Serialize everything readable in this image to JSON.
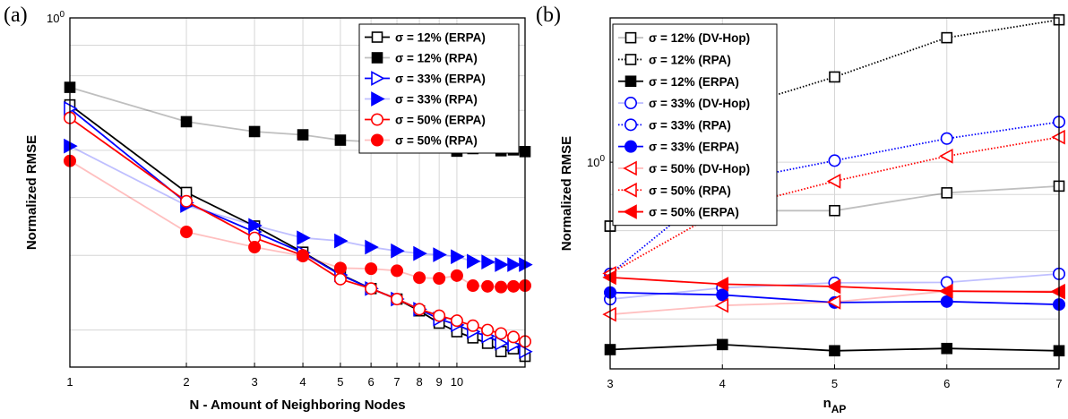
{
  "chart_data": [
    {
      "panel_label": "(a)",
      "type": "line",
      "xscale": "log",
      "yscale": "log",
      "xlabel": "N - Amount of Neighboring Nodes",
      "ylabel": "Normalized RMSE",
      "xlim": [
        1,
        15
      ],
      "ylim": [
        0.26,
        1.0
      ],
      "xticks": [
        1,
        2,
        3,
        4,
        5,
        6,
        7,
        8,
        9,
        10
      ],
      "xtick_labels": [
        "1",
        "2",
        "3",
        "4",
        "5",
        "6",
        "7",
        "8",
        "9",
        "10"
      ],
      "yticks": [
        1.0
      ],
      "ytick_labels": [
        "10⁰"
      ],
      "grid": true,
      "legend_position": "top-right",
      "series": [
        {
          "name": "σ = 12% (ERPA)",
          "color": "#000000",
          "marker": "square",
          "filled": false,
          "line_alpha": 1.0,
          "x": [
            1,
            2,
            3,
            4,
            5,
            6,
            7,
            8,
            9,
            10,
            11,
            12,
            13,
            14,
            15
          ],
          "y": [
            0.715,
            0.51,
            0.448,
            0.405,
            0.372,
            0.352,
            0.338,
            0.323,
            0.308,
            0.298,
            0.291,
            0.285,
            0.276,
            0.279,
            0.271
          ]
        },
        {
          "name": "σ = 12% (RPA)",
          "color": "#000000",
          "marker": "square",
          "filled": true,
          "line_alpha": 0.25,
          "x": [
            1,
            2,
            3,
            4,
            5,
            6,
            7,
            8,
            9,
            10,
            11,
            12,
            13,
            14,
            15
          ],
          "y": [
            0.765,
            0.67,
            0.645,
            0.637,
            0.624,
            0.62,
            0.617,
            0.615,
            0.607,
            0.598,
            0.604,
            0.61,
            0.599,
            0.601,
            0.597
          ]
        },
        {
          "name": "σ = 33% (ERPA)",
          "color": "#0000ff",
          "marker": "triangle-right",
          "filled": false,
          "line_alpha": 1.0,
          "x": [
            1,
            2,
            3,
            4,
            5,
            6,
            7,
            8,
            9,
            10,
            11,
            12,
            13,
            14,
            15
          ],
          "y": [
            0.705,
            0.49,
            0.438,
            0.404,
            0.371,
            0.352,
            0.338,
            0.325,
            0.313,
            0.306,
            0.298,
            0.293,
            0.285,
            0.283,
            0.276
          ]
        },
        {
          "name": "σ = 33% (RPA)",
          "color": "#0000ff",
          "marker": "triangle-right",
          "filled": true,
          "line_alpha": 0.25,
          "x": [
            1,
            2,
            3,
            4,
            5,
            6,
            7,
            8,
            9,
            10,
            11,
            12,
            13,
            14,
            15
          ],
          "y": [
            0.61,
            0.485,
            0.449,
            0.428,
            0.423,
            0.413,
            0.407,
            0.403,
            0.401,
            0.398,
            0.391,
            0.39,
            0.386,
            0.386,
            0.386
          ]
        },
        {
          "name": "σ = 50% (ERPA)",
          "color": "#ff0000",
          "marker": "circle",
          "filled": false,
          "line_alpha": 1.0,
          "x": [
            1,
            2,
            3,
            4,
            5,
            6,
            7,
            8,
            9,
            10,
            11,
            12,
            13,
            14,
            15
          ],
          "y": [
            0.68,
            0.493,
            0.428,
            0.4,
            0.365,
            0.352,
            0.338,
            0.325,
            0.317,
            0.311,
            0.305,
            0.3,
            0.296,
            0.292,
            0.287
          ]
        },
        {
          "name": "σ = 50% (RPA)",
          "color": "#ff0000",
          "marker": "circle",
          "filled": true,
          "line_alpha": 0.25,
          "x": [
            1,
            2,
            3,
            4,
            5,
            6,
            7,
            8,
            9,
            10,
            11,
            12,
            13,
            14,
            15
          ],
          "y": [
            0.576,
            0.438,
            0.413,
            0.399,
            0.381,
            0.38,
            0.377,
            0.367,
            0.366,
            0.37,
            0.356,
            0.355,
            0.354,
            0.355,
            0.356
          ]
        }
      ]
    },
    {
      "panel_label": "(b)",
      "type": "line",
      "xscale": "linear",
      "yscale": "log",
      "xlabel_main": "n",
      "xlabel_sub": "AP",
      "ylabel": "Normalized RMSE",
      "xlim": [
        3,
        7
      ],
      "ylim": [
        0.51,
        1.6
      ],
      "xticks": [
        3,
        4,
        5,
        6,
        7
      ],
      "xtick_labels": [
        "3",
        "4",
        "5",
        "6",
        "7"
      ],
      "yticks": [
        1.0
      ],
      "ytick_labels": [
        "10⁰"
      ],
      "grid": true,
      "legend_position": "top-left",
      "series": [
        {
          "name": "σ = 12% (DV-Hop)",
          "color": "#000000",
          "marker": "square",
          "filled": false,
          "line_alpha": 0.25,
          "dotted": false,
          "x": [
            3,
            4,
            5,
            6,
            7
          ],
          "y": [
            0.812,
            0.854,
            0.854,
            0.905,
            0.925
          ]
        },
        {
          "name": "σ = 12% (RPA)",
          "color": "#000000",
          "marker": "square",
          "filled": false,
          "line_alpha": 1.0,
          "dotted": true,
          "x": [
            3,
            4,
            5,
            6,
            7
          ],
          "y": [
            0.812,
            1.18,
            1.32,
            1.5,
            1.59
          ]
        },
        {
          "name": "σ = 12% (ERPA)",
          "color": "#000000",
          "marker": "square",
          "filled": true,
          "line_alpha": 1.0,
          "dotted": false,
          "x": [
            3,
            4,
            5,
            6,
            7
          ],
          "y": [
            0.543,
            0.552,
            0.541,
            0.545,
            0.541
          ]
        },
        {
          "name": "σ = 33% (DV-Hop)",
          "color": "#0000ff",
          "marker": "circle",
          "filled": false,
          "line_alpha": 0.25,
          "dotted": false,
          "x": [
            3,
            4,
            5,
            6,
            7
          ],
          "y": [
            0.64,
            0.664,
            0.675,
            0.676,
            0.695
          ]
        },
        {
          "name": "σ = 33% (RPA)",
          "color": "#0000ff",
          "marker": "circle",
          "filled": false,
          "line_alpha": 1.0,
          "dotted": true,
          "x": [
            3,
            4,
            5,
            6,
            7
          ],
          "y": [
            0.695,
            0.935,
            1.005,
            1.08,
            1.14
          ]
        },
        {
          "name": "σ = 33% (ERPA)",
          "color": "#0000ff",
          "marker": "circle",
          "filled": true,
          "line_alpha": 1.0,
          "dotted": false,
          "x": [
            3,
            4,
            5,
            6,
            7
          ],
          "y": [
            0.654,
            0.649,
            0.633,
            0.635,
            0.629
          ]
        },
        {
          "name": "σ = 50% (DV-Hop)",
          "color": "#ff0000",
          "marker": "triangle-left",
          "filled": false,
          "line_alpha": 0.25,
          "dotted": false,
          "x": [
            3,
            4,
            5,
            6,
            7
          ],
          "y": [
            0.609,
            0.627,
            0.634,
            0.657,
            0.657
          ]
        },
        {
          "name": "σ = 50% (RPA)",
          "color": "#ff0000",
          "marker": "triangle-left",
          "filled": false,
          "line_alpha": 1.0,
          "dotted": true,
          "x": [
            3,
            4,
            5,
            6,
            7
          ],
          "y": [
            0.696,
            0.856,
            0.94,
            1.02,
            1.085
          ]
        },
        {
          "name": "σ = 50% (ERPA)",
          "color": "#ff0000",
          "marker": "triangle-left",
          "filled": true,
          "line_alpha": 1.0,
          "dotted": false,
          "x": [
            3,
            4,
            5,
            6,
            7
          ],
          "y": [
            0.687,
            0.672,
            0.667,
            0.657,
            0.655
          ]
        }
      ]
    }
  ]
}
